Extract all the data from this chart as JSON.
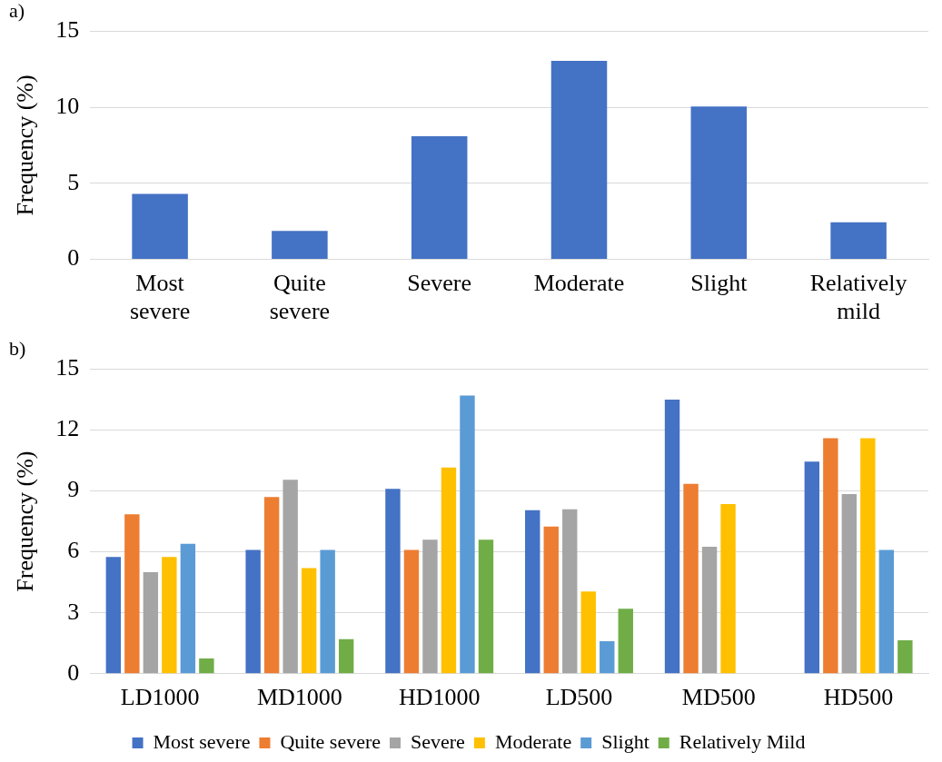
{
  "chart_data": [
    {
      "type": "bar",
      "title": "a)",
      "ylabel": "Frequency (%)",
      "categories": [
        "Most severe",
        "Quite severe",
        "Severe",
        "Moderate",
        "Slight",
        "Relatively mild"
      ],
      "values": [
        4.3,
        1.87,
        8.1,
        13.06,
        10.05,
        2.44
      ],
      "color": "#4472c4",
      "ylim": [
        0,
        15
      ],
      "yticks": [
        0,
        5,
        10,
        15
      ],
      "grid": "y",
      "legend": false
    },
    {
      "type": "bar",
      "title": "b)",
      "ylabel": "Frequency (%)",
      "categories": [
        "LD1000",
        "MD1000",
        "HD1000",
        "LD500",
        "MD500",
        "HD500"
      ],
      "series": [
        {
          "name": "Most severe",
          "color": "#4472c4",
          "values": [
            5.75,
            6.1,
            9.1,
            8.05,
            13.5,
            10.45
          ]
        },
        {
          "name": "Quite severe",
          "color": "#ed7d31",
          "values": [
            7.85,
            8.7,
            6.1,
            7.25,
            9.35,
            11.6
          ]
        },
        {
          "name": "Severe",
          "color": "#a5a5a5",
          "values": [
            5.0,
            9.55,
            6.6,
            8.1,
            6.25,
            8.85
          ]
        },
        {
          "name": "Moderate",
          "color": "#ffc000",
          "values": [
            5.75,
            5.2,
            10.15,
            4.05,
            8.35,
            11.6
          ]
        },
        {
          "name": "Slight",
          "color": "#5b9bd5",
          "values": [
            6.4,
            6.1,
            13.7,
            1.6,
            null,
            6.1
          ]
        },
        {
          "name": "Relatively Mild",
          "color": "#70ad47",
          "values": [
            0.75,
            1.7,
            6.6,
            3.2,
            null,
            1.65
          ]
        }
      ],
      "ylim": [
        0,
        15
      ],
      "yticks": [
        0,
        3,
        6,
        9,
        12,
        15
      ],
      "grid": "y",
      "legend": "bottom"
    }
  ]
}
